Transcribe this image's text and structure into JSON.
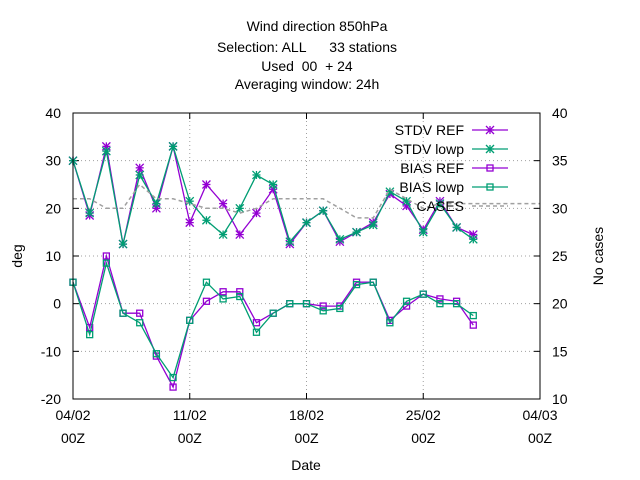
{
  "chart_data": {
    "type": "line",
    "title_lines": [
      "Wind direction 850hPa",
      "Selection: ALL      33 stations",
      "Used  00  + 24",
      "Averaging window: 24h"
    ],
    "xlabel": "Date",
    "ylabel": "deg",
    "y2label": "No cases",
    "x_ticks": [
      {
        "day": 0,
        "line1": "04/02",
        "line2": "00Z"
      },
      {
        "day": 7,
        "line1": "11/02",
        "line2": "00Z"
      },
      {
        "day": 14,
        "line1": "18/02",
        "line2": "00Z"
      },
      {
        "day": 21,
        "line1": "25/02",
        "line2": "00Z"
      },
      {
        "day": 28,
        "line1": "04/03",
        "line2": "00Z"
      }
    ],
    "xlim": [
      0,
      28
    ],
    "ylim": [
      -20,
      40
    ],
    "y_ticks": [
      -20,
      -10,
      0,
      10,
      20,
      30,
      40
    ],
    "y2lim": [
      10,
      40
    ],
    "y2_ticks": [
      10,
      15,
      20,
      25,
      30,
      35,
      40
    ],
    "grid": true,
    "legend_position": "top-right",
    "x": [
      0,
      1,
      2,
      3,
      4,
      5,
      6,
      7,
      8,
      9,
      10,
      11,
      12,
      13,
      14,
      15,
      16,
      17,
      18,
      19,
      20,
      21,
      22,
      23,
      24
    ],
    "series": [
      {
        "name": "STDV REF",
        "marker": "star",
        "color": "#9400d3",
        "axis": "left",
        "values": [
          30,
          18.5,
          33,
          12.5,
          28.5,
          20,
          33,
          17,
          25,
          21,
          14.5,
          19,
          24,
          12.5,
          17,
          19.5,
          13,
          15,
          17,
          23,
          20.5,
          15.5,
          21.5,
          16,
          14.5
        ]
      },
      {
        "name": "STDV lowp",
        "marker": "star",
        "color": "#009e73",
        "axis": "left",
        "values": [
          30,
          19,
          32,
          12.5,
          27,
          21,
          33,
          21.5,
          17.5,
          14.5,
          20,
          27,
          25,
          13,
          17,
          19.5,
          13.5,
          15,
          16.5,
          23.5,
          21.5,
          15,
          21,
          16,
          13.5
        ]
      },
      {
        "name": "BIAS REF",
        "marker": "square",
        "color": "#9400d3",
        "axis": "left",
        "values": [
          4.5,
          -5,
          10,
          -2,
          -2,
          -11,
          -17.5,
          -3.5,
          0.5,
          2.5,
          2.5,
          -4,
          -2,
          0,
          0,
          -0.5,
          -0.5,
          4.5,
          4.5,
          -3.5,
          -0.5,
          2,
          1,
          0.5,
          -4.5
        ]
      },
      {
        "name": "BIAS lowp",
        "marker": "square",
        "color": "#009e73",
        "axis": "left",
        "values": [
          4.5,
          -6.5,
          8.5,
          -2,
          -4,
          -10.5,
          -15.5,
          -3.5,
          4.5,
          1,
          1.5,
          -6,
          -2,
          0,
          0,
          -1.5,
          -1,
          4,
          4.5,
          -4,
          0.5,
          2,
          0,
          0,
          -2.5
        ]
      },
      {
        "name": "CASES",
        "marker": "none",
        "color": "#a0a0a0",
        "dashed": true,
        "axis": "right",
        "x": [
          0,
          1,
          2,
          3,
          4,
          5,
          6,
          7,
          8,
          9,
          10,
          11,
          12,
          13,
          14,
          15,
          16,
          17,
          18,
          19,
          20,
          21,
          22,
          23,
          24,
          25,
          26,
          27,
          28
        ],
        "values": [
          31,
          31,
          30,
          30,
          32.5,
          31,
          31,
          30.5,
          30,
          30,
          29.5,
          30,
          31,
          31,
          31,
          31,
          30,
          29,
          29,
          32,
          31,
          30,
          30.5,
          30.5,
          30.5,
          30.5,
          30.5,
          30.5,
          30.5
        ]
      }
    ]
  }
}
